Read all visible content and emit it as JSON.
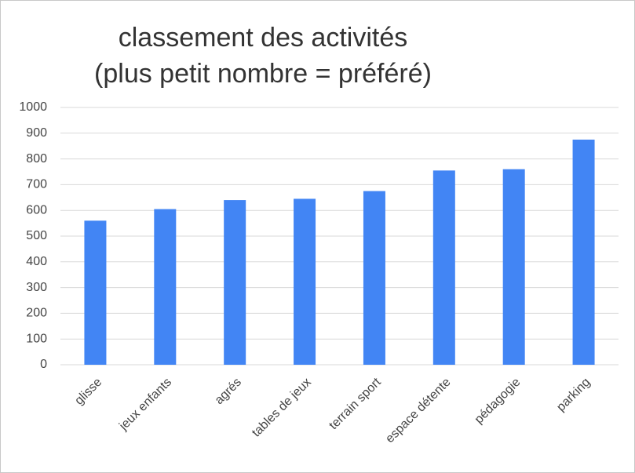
{
  "chart_data": {
    "type": "bar",
    "title": [
      "classement des activités",
      "(plus petit nombre = préféré)"
    ],
    "categories": [
      "glisse",
      "jeux enfants",
      "agrés",
      "tables de jeux",
      "terrain sport",
      "espace détente",
      "pédagogie",
      "parking"
    ],
    "values": [
      560,
      605,
      640,
      645,
      675,
      755,
      760,
      875
    ],
    "color": "#4285f4",
    "ylim": [
      0,
      1000
    ],
    "yticks": [
      0,
      100,
      200,
      300,
      400,
      500,
      600,
      700,
      800,
      900,
      1000
    ],
    "grid": true
  }
}
